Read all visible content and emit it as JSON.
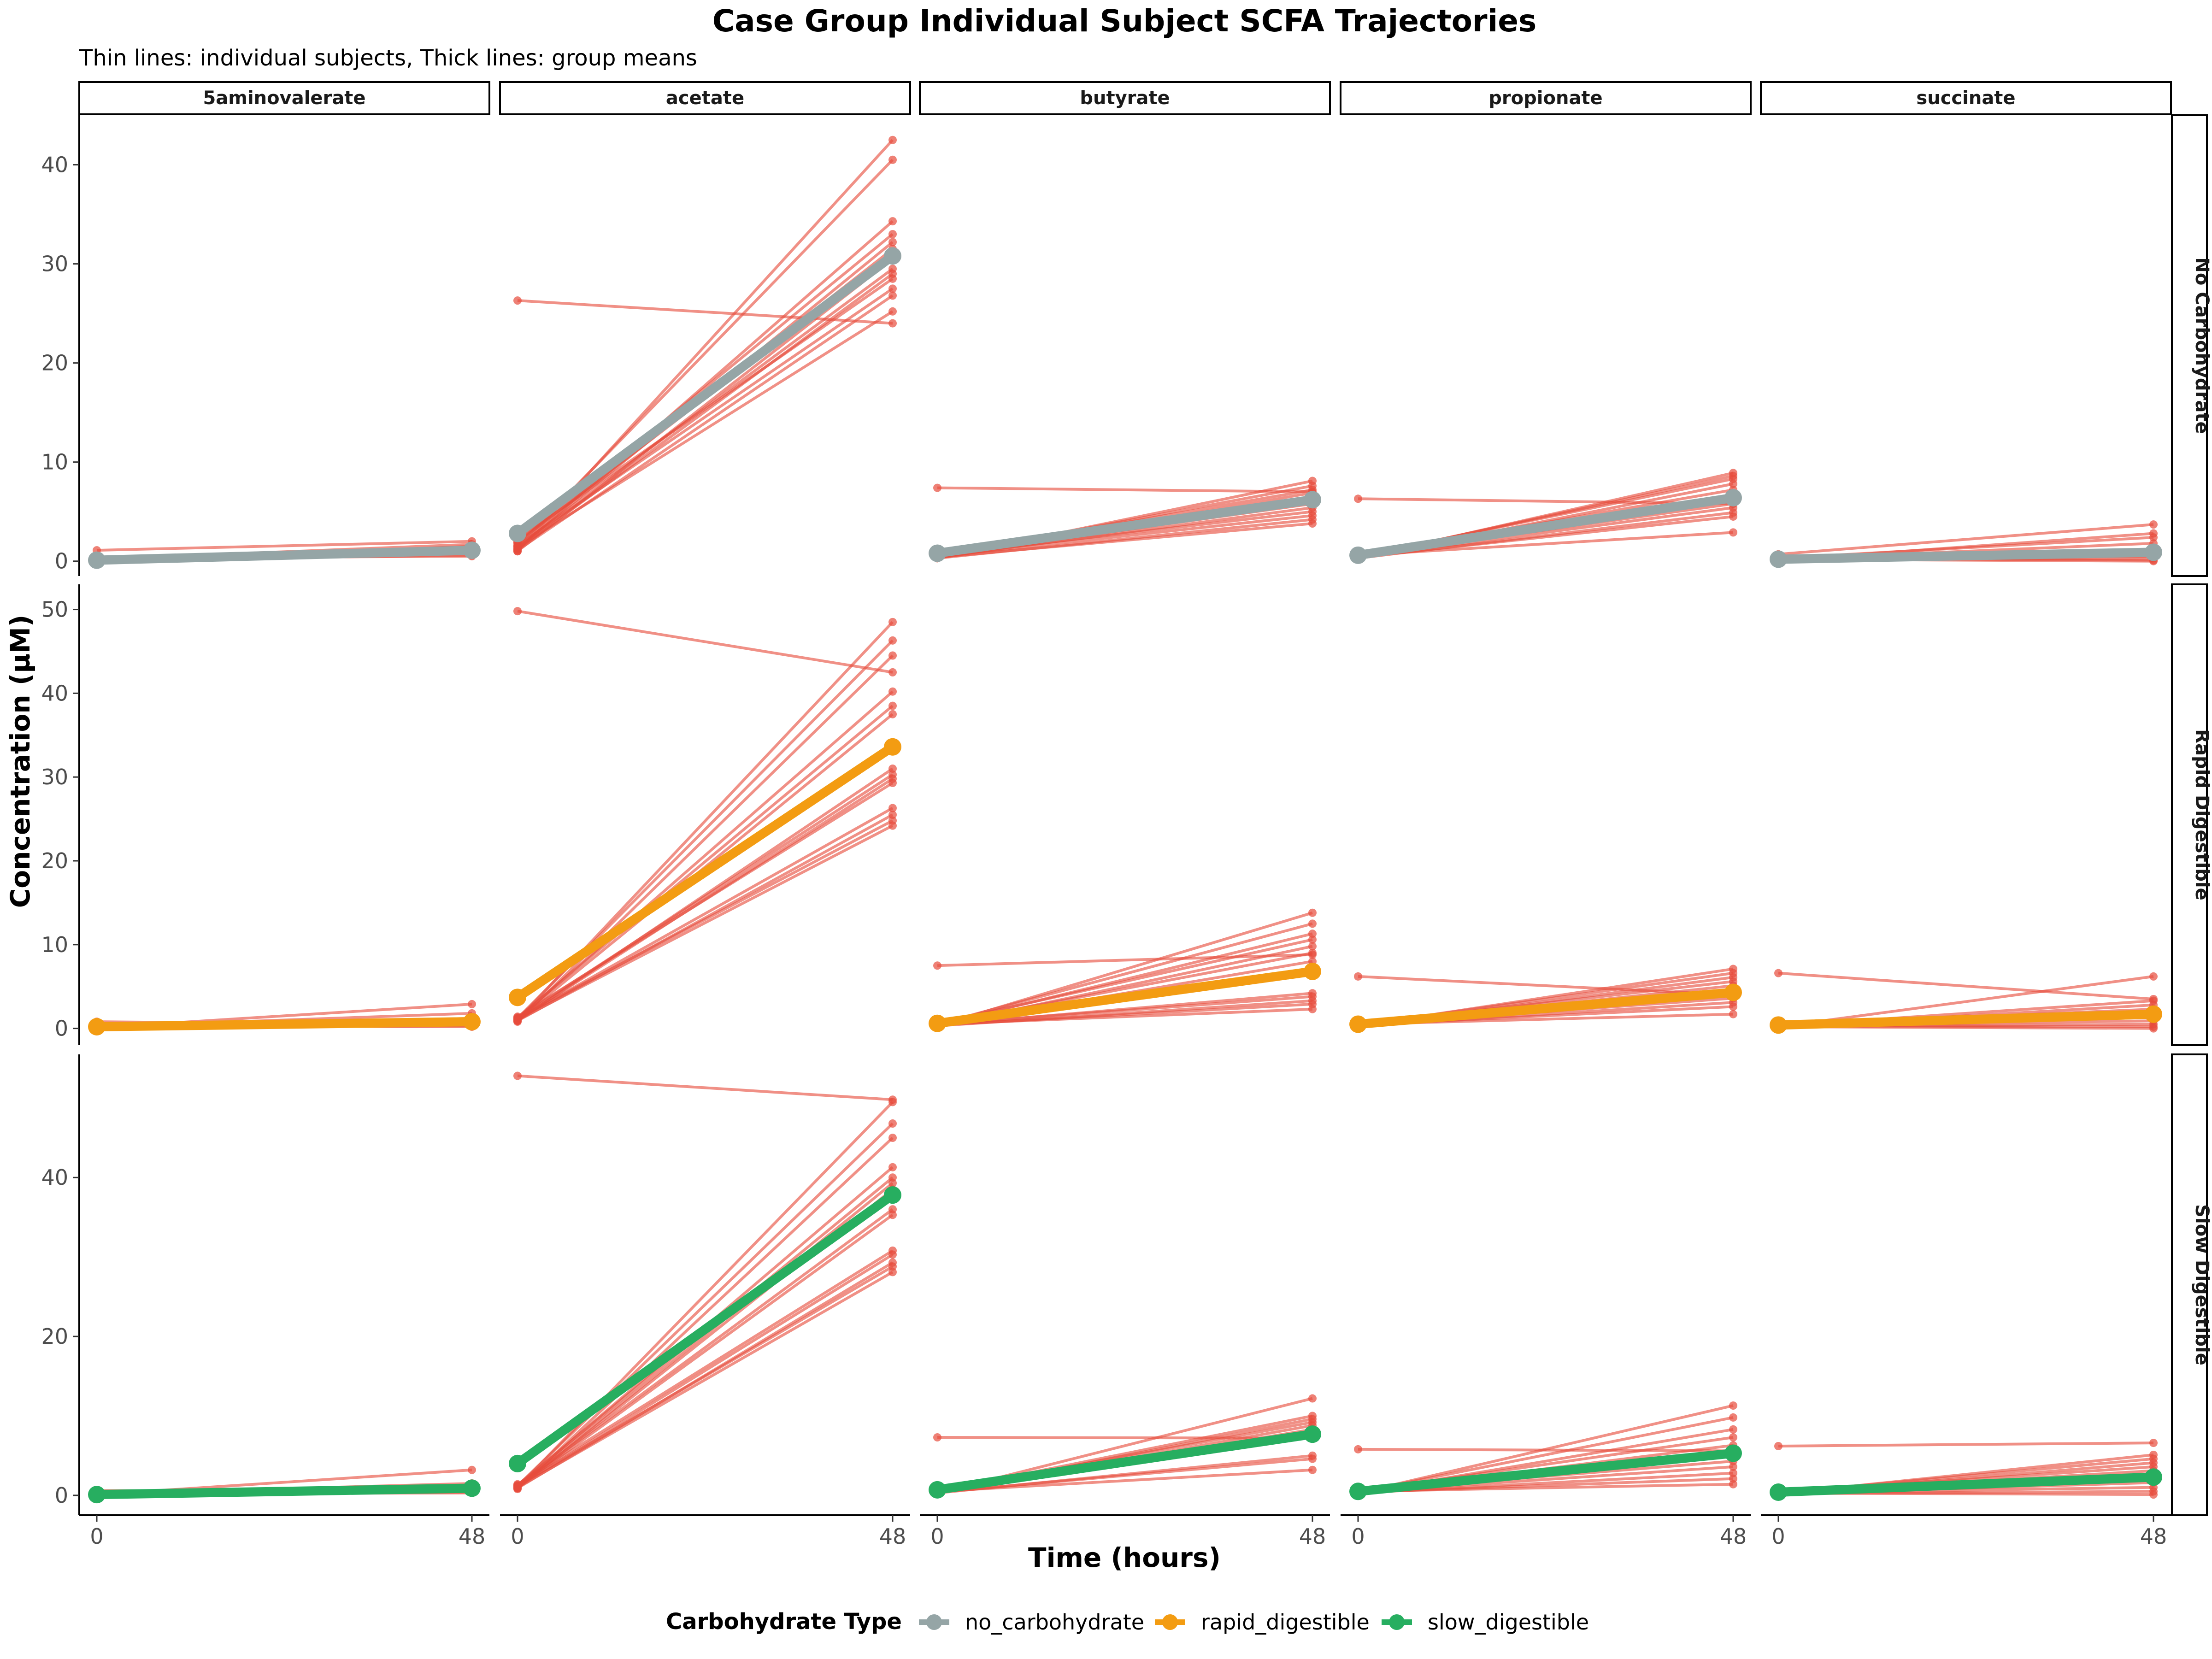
{
  "chart_data": {
    "type": "line",
    "title": "Case Group Individual Subject SCFA Trajectories",
    "subtitle": "Thin lines: individual subjects, Thick lines: group means",
    "xlabel": "Time (hours)",
    "ylabel": "Concentration (µM)",
    "x": [
      0,
      48
    ],
    "x_ticks": [
      "0",
      "48"
    ],
    "columns": [
      "5aminovalerate",
      "acetate",
      "butyrate",
      "propionate",
      "succinate"
    ],
    "rows": [
      {
        "label": "No Carbohydrate",
        "ylim": [
          -1.5,
          45
        ],
        "yticks": [
          0,
          10,
          20,
          30,
          40
        ]
      },
      {
        "label": "Rapid Digestible",
        "ylim": [
          -2,
          53
        ],
        "yticks": [
          0,
          10,
          20,
          30,
          40,
          50
        ]
      },
      {
        "label": "Slow Digestible",
        "ylim": [
          -2.5,
          55.5
        ],
        "yticks": [
          0,
          20,
          40
        ]
      }
    ],
    "legend": {
      "title": "Carbohydrate Type",
      "position": "bottom",
      "items": [
        {
          "name": "no_carbohydrate",
          "color": "#95a5a6"
        },
        {
          "name": "rapid_digestible",
          "color": "#f39c12"
        },
        {
          "name": "slow_digestible",
          "color": "#27ae60"
        }
      ]
    },
    "subject_color": "#e74c3c",
    "panels": [
      {
        "row": 0,
        "col": 0,
        "mean": [
          0.1,
          1.1
        ],
        "subjects": [
          [
            0.2,
            1.2
          ],
          [
            1.1,
            2.0
          ],
          [
            0.3,
            0.5
          ],
          [
            0.1,
            1.0
          ],
          [
            0.2,
            0.8
          ],
          [
            0.0,
            1.5
          ],
          [
            0.1,
            1.3
          ],
          [
            0.3,
            0.9
          ],
          [
            0.2,
            1.7
          ],
          [
            0.1,
            0.6
          ]
        ]
      },
      {
        "row": 0,
        "col": 1,
        "mean": [
          2.8,
          30.8
        ],
        "subjects": [
          [
            26.3,
            24.0
          ],
          [
            1.0,
            42.5
          ],
          [
            1.5,
            40.5
          ],
          [
            1.2,
            34.3
          ],
          [
            2.0,
            33.0
          ],
          [
            1.3,
            32.2
          ],
          [
            1.8,
            31.5
          ],
          [
            1.0,
            30.5
          ],
          [
            1.5,
            29.5
          ],
          [
            1.2,
            29.0
          ],
          [
            2.2,
            28.5
          ],
          [
            1.6,
            27.5
          ],
          [
            1.1,
            26.8
          ],
          [
            1.4,
            25.2
          ],
          [
            1.9,
            31.0
          ]
        ]
      },
      {
        "row": 0,
        "col": 2,
        "mean": [
          0.8,
          6.2
        ],
        "subjects": [
          [
            7.4,
            7.0
          ],
          [
            0.3,
            8.1
          ],
          [
            0.5,
            7.6
          ],
          [
            0.6,
            7.2
          ],
          [
            0.4,
            6.9
          ],
          [
            0.7,
            6.5
          ],
          [
            0.3,
            6.2
          ],
          [
            0.5,
            5.8
          ],
          [
            0.4,
            5.4
          ],
          [
            0.6,
            5.0
          ],
          [
            0.5,
            4.6
          ],
          [
            0.3,
            4.2
          ],
          [
            0.4,
            3.8
          ]
        ]
      },
      {
        "row": 0,
        "col": 3,
        "mean": [
          0.6,
          6.4
        ],
        "subjects": [
          [
            6.3,
            5.8
          ],
          [
            0.3,
            8.9
          ],
          [
            0.4,
            8.6
          ],
          [
            0.5,
            8.3
          ],
          [
            0.3,
            7.8
          ],
          [
            0.6,
            7.2
          ],
          [
            0.4,
            6.7
          ],
          [
            0.3,
            6.3
          ],
          [
            0.5,
            5.8
          ],
          [
            0.4,
            5.4
          ],
          [
            0.3,
            4.9
          ],
          [
            0.4,
            4.5
          ],
          [
            0.6,
            2.9
          ]
        ]
      },
      {
        "row": 0,
        "col": 4,
        "mean": [
          0.2,
          0.9
        ],
        "subjects": [
          [
            0.7,
            3.7
          ],
          [
            0.1,
            2.8
          ],
          [
            0.3,
            2.4
          ],
          [
            0.2,
            1.8
          ],
          [
            0.1,
            1.2
          ],
          [
            0.4,
            0.8
          ],
          [
            0.2,
            0.5
          ],
          [
            0.1,
            0.3
          ],
          [
            0.3,
            0.1
          ],
          [
            0.2,
            0.0
          ]
        ]
      },
      {
        "row": 1,
        "col": 0,
        "mean": [
          0.2,
          0.8
        ],
        "subjects": [
          [
            0.8,
            0.4
          ],
          [
            0.1,
            2.9
          ],
          [
            0.2,
            1.8
          ],
          [
            0.3,
            1.2
          ],
          [
            0.1,
            0.9
          ],
          [
            0.2,
            0.6
          ],
          [
            0.4,
            0.5
          ],
          [
            0.1,
            0.3
          ],
          [
            0.3,
            0.2
          ],
          [
            0.2,
            1.0
          ]
        ]
      },
      {
        "row": 1,
        "col": 1,
        "mean": [
          3.7,
          33.6
        ],
        "subjects": [
          [
            49.8,
            42.5
          ],
          [
            1.0,
            48.5
          ],
          [
            1.2,
            46.3
          ],
          [
            0.8,
            44.5
          ],
          [
            1.1,
            40.2
          ],
          [
            1.3,
            38.5
          ],
          [
            1.0,
            37.5
          ],
          [
            0.9,
            31.0
          ],
          [
            1.2,
            30.3
          ],
          [
            1.0,
            29.8
          ],
          [
            1.4,
            29.3
          ],
          [
            1.1,
            26.3
          ],
          [
            0.9,
            25.5
          ],
          [
            1.2,
            24.8
          ],
          [
            1.0,
            24.2
          ]
        ]
      },
      {
        "row": 1,
        "col": 2,
        "mean": [
          0.6,
          6.8
        ],
        "subjects": [
          [
            7.5,
            8.8
          ],
          [
            0.3,
            13.8
          ],
          [
            0.5,
            12.5
          ],
          [
            0.4,
            11.3
          ],
          [
            0.6,
            10.6
          ],
          [
            0.3,
            9.8
          ],
          [
            0.5,
            9.0
          ],
          [
            0.4,
            8.0
          ],
          [
            0.6,
            7.2
          ],
          [
            0.3,
            6.5
          ],
          [
            0.4,
            4.2
          ],
          [
            0.5,
            3.8
          ],
          [
            0.3,
            3.3
          ],
          [
            0.4,
            2.9
          ],
          [
            0.5,
            2.3
          ]
        ]
      },
      {
        "row": 1,
        "col": 3,
        "mean": [
          0.5,
          4.3
        ],
        "subjects": [
          [
            6.2,
            4.0
          ],
          [
            0.3,
            7.1
          ],
          [
            0.4,
            6.6
          ],
          [
            0.3,
            6.1
          ],
          [
            0.5,
            5.6
          ],
          [
            0.4,
            5.1
          ],
          [
            0.3,
            4.6
          ],
          [
            0.5,
            4.1
          ],
          [
            0.4,
            3.6
          ],
          [
            0.3,
            3.1
          ],
          [
            0.4,
            2.6
          ],
          [
            0.5,
            1.7
          ]
        ]
      },
      {
        "row": 1,
        "col": 4,
        "mean": [
          0.4,
          1.7
        ],
        "subjects": [
          [
            6.6,
            3.5
          ],
          [
            0.2,
            6.2
          ],
          [
            0.3,
            3.3
          ],
          [
            0.2,
            2.8
          ],
          [
            0.4,
            2.3
          ],
          [
            0.3,
            1.8
          ],
          [
            0.2,
            1.3
          ],
          [
            0.3,
            0.9
          ],
          [
            0.2,
            0.5
          ],
          [
            0.3,
            0.2
          ],
          [
            0.2,
            0.0
          ]
        ]
      },
      {
        "row": 2,
        "col": 0,
        "mean": [
          0.1,
          0.9
        ],
        "subjects": [
          [
            0.6,
            0.5
          ],
          [
            0.1,
            3.2
          ],
          [
            0.2,
            1.5
          ],
          [
            0.1,
            1.1
          ],
          [
            0.3,
            0.8
          ],
          [
            0.2,
            0.6
          ],
          [
            0.1,
            0.4
          ],
          [
            0.3,
            1.0
          ],
          [
            0.2,
            0.3
          ],
          [
            0.1,
            0.7
          ]
        ]
      },
      {
        "row": 2,
        "col": 1,
        "mean": [
          4.0,
          37.8
        ],
        "subjects": [
          [
            52.8,
            49.8
          ],
          [
            1.0,
            49.5
          ],
          [
            1.2,
            46.8
          ],
          [
            0.8,
            45.0
          ],
          [
            1.1,
            41.3
          ],
          [
            1.3,
            40.0
          ],
          [
            1.0,
            39.3
          ],
          [
            0.9,
            38.5
          ],
          [
            1.2,
            36.0
          ],
          [
            1.0,
            35.3
          ],
          [
            1.4,
            30.8
          ],
          [
            1.1,
            30.3
          ],
          [
            0.9,
            29.3
          ],
          [
            1.2,
            28.8
          ],
          [
            1.0,
            28.1
          ]
        ]
      },
      {
        "row": 2,
        "col": 2,
        "mean": [
          0.7,
          7.7
        ],
        "subjects": [
          [
            7.3,
            7.2
          ],
          [
            0.3,
            12.2
          ],
          [
            0.5,
            10.0
          ],
          [
            0.4,
            9.6
          ],
          [
            0.6,
            9.2
          ],
          [
            0.3,
            8.8
          ],
          [
            0.5,
            8.3
          ],
          [
            0.4,
            7.9
          ],
          [
            0.6,
            7.4
          ],
          [
            0.3,
            5.0
          ],
          [
            0.4,
            4.6
          ],
          [
            0.5,
            3.2
          ]
        ]
      },
      {
        "row": 2,
        "col": 3,
        "mean": [
          0.5,
          5.3
        ],
        "subjects": [
          [
            5.8,
            5.6
          ],
          [
            0.3,
            11.3
          ],
          [
            0.4,
            9.8
          ],
          [
            0.3,
            8.3
          ],
          [
            0.5,
            7.3
          ],
          [
            0.4,
            6.3
          ],
          [
            0.3,
            5.2
          ],
          [
            0.5,
            4.3
          ],
          [
            0.4,
            3.6
          ],
          [
            0.3,
            2.8
          ],
          [
            0.4,
            2.1
          ],
          [
            0.5,
            1.4
          ]
        ]
      },
      {
        "row": 2,
        "col": 4,
        "mean": [
          0.4,
          2.3
        ],
        "subjects": [
          [
            6.2,
            6.6
          ],
          [
            0.2,
            5.1
          ],
          [
            0.3,
            4.6
          ],
          [
            0.2,
            4.1
          ],
          [
            0.4,
            3.6
          ],
          [
            0.3,
            3.1
          ],
          [
            0.2,
            2.6
          ],
          [
            0.3,
            2.1
          ],
          [
            0.2,
            1.6
          ],
          [
            0.3,
            1.0
          ],
          [
            0.2,
            0.5
          ],
          [
            0.3,
            0.1
          ]
        ]
      }
    ]
  }
}
